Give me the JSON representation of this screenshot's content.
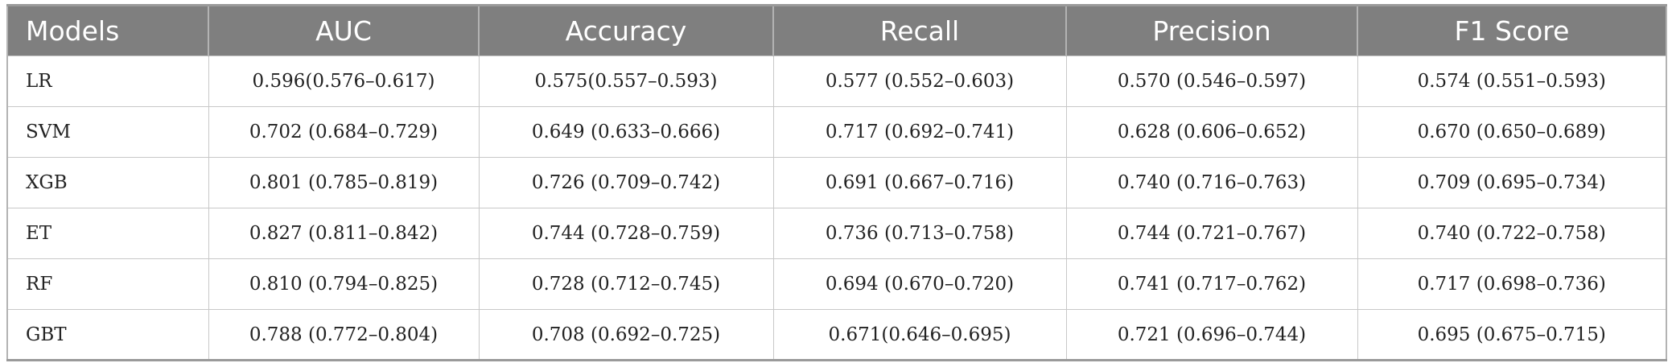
{
  "table": {
    "headers": [
      "Models",
      "AUC",
      "Accuracy",
      "Recall",
      "Precision",
      "F1 Score"
    ],
    "rows": [
      [
        "LR",
        "0.596(0.576–0.617)",
        "0.575(0.557–0.593)",
        "0.577 (0.552–0.603)",
        "0.570 (0.546–0.597)",
        "0.574 (0.551–0.593)"
      ],
      [
        "SVM",
        "0.702 (0.684–0.729)",
        "0.649 (0.633–0.666)",
        "0.717 (0.692–0.741)",
        "0.628 (0.606–0.652)",
        "0.670 (0.650–0.689)"
      ],
      [
        "XGB",
        "0.801 (0.785–0.819)",
        "0.726 (0.709–0.742)",
        "0.691 (0.667–0.716)",
        "0.740 (0.716–0.763)",
        "0.709 (0.695–0.734)"
      ],
      [
        "ET",
        "0.827 (0.811–0.842)",
        "0.744 (0.728–0.759)",
        "0.736 (0.713–0.758)",
        "0.744 (0.721–0.767)",
        "0.740 (0.722–0.758)"
      ],
      [
        "RF",
        "0.810 (0.794–0.825)",
        "0.728 (0.712–0.745)",
        "0.694 (0.670–0.720)",
        "0.741 (0.717–0.762)",
        "0.717 (0.698–0.736)"
      ],
      [
        "GBT",
        "0.788 (0.772–0.804)",
        "0.708 (0.692–0.725)",
        "0.671(0.646–0.695)",
        "0.721 (0.696–0.744)",
        "0.695 (0.675–0.715)"
      ]
    ]
  },
  "colors": {
    "header_background": "#7f7f7f",
    "header_text": "#ffffff",
    "cell_text": "#222222",
    "grid_line": "#c8c8c8"
  }
}
